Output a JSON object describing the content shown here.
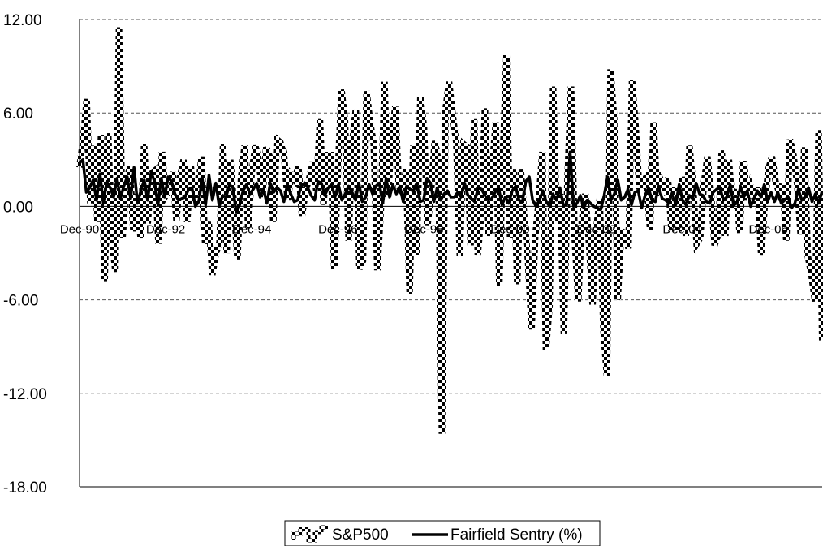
{
  "chart_data": {
    "type": "line",
    "title": "",
    "xlabel": "",
    "ylabel": "",
    "ylim": [
      -18,
      12
    ],
    "yticks": [
      "12.00",
      "6.00",
      "0.00",
      "-6.00",
      "-12.00",
      "-18.00"
    ],
    "xticks": [
      "Dec-90",
      "Dec-92",
      "Dec-94",
      "Dec-96",
      "Dec-98",
      "Dec-00",
      "Dec-02",
      "Dec-04",
      "Dec-06"
    ],
    "grid": "horizontal-dashed",
    "legend_position": "bottom",
    "x_start": "Dec-90",
    "x_end": "Dec-08",
    "series": [
      {
        "name": "S&P500",
        "style": "checkered",
        "color": "#000000",
        "values": [
          2.5,
          4.3,
          6.9,
          0.2,
          3.9,
          -1.0,
          4.6,
          -4.8,
          4.7,
          -2.0,
          -4.2,
          11.5,
          -2.0,
          1.3,
          2.6,
          -1.6,
          0.8,
          -2.0,
          4.0,
          -1.1,
          2.1,
          2.3,
          -2.4,
          3.5,
          0.7,
          1.1,
          2.2,
          -0.9,
          1.9,
          3.0,
          -1.0,
          2.6,
          0.3,
          1.1,
          3.2,
          -2.4,
          -1.0,
          -4.4,
          -3.0,
          -2.3,
          4.0,
          -3.0,
          3.0,
          0.2,
          -3.4,
          1.8,
          3.9,
          -1.4,
          2.2,
          3.9,
          2.9,
          0.6,
          3.8,
          3.2,
          -1.0,
          4.3,
          4.1,
          3.3,
          0.4,
          2.0,
          1.7,
          2.6,
          -0.6,
          1.0,
          1.8,
          2.8,
          1.0,
          5.6,
          0.1,
          3.3,
          3.3,
          -4.0,
          2.2,
          7.5,
          5.5,
          -2.2,
          4.1,
          6.2,
          -4.0,
          -3.5,
          7.4,
          5.4,
          4.0,
          -4.1,
          -0.1,
          8.0,
          0.6,
          4.5,
          6.4,
          1.3,
          0.9,
          2.4,
          -5.6,
          3.9,
          -3.1,
          7.0,
          5.1,
          -1.2,
          1.0,
          4.2,
          3.0,
          -14.6,
          6.2,
          8.0,
          5.9,
          4.1,
          -3.2,
          4.0,
          3.8,
          -2.5,
          5.6,
          -3.1,
          -0.5,
          6.3,
          -1.9,
          2.5,
          5.4,
          -5.1,
          3.3,
          9.7,
          -2.0,
          2.4,
          -5.0,
          2.4,
          -0.8,
          -3.5,
          -7.9,
          -2.0,
          0.4,
          3.5,
          -9.2,
          -6.4,
          7.7,
          -0.9,
          0.8,
          -8.2,
          1.8,
          7.7,
          -2.0,
          -6.1,
          -0.9,
          0.8,
          -2.4,
          -6.3,
          -1.5,
          0.5,
          -7.9,
          -10.9,
          8.8,
          5.7,
          -6.0,
          -1.6,
          -1.7,
          -2.7,
          8.1,
          5.1,
          1.1,
          1.6,
          1.9,
          -1.5,
          5.4,
          0.7,
          1.7,
          1.2,
          1.8,
          -1.6,
          1.2,
          -1.6,
          1.9,
          -1.9,
          3.9,
          1.3,
          -2.4,
          -2.0,
          1.4,
          3.2,
          0.9,
          -2.5,
          -1.8,
          3.6,
          -1.9,
          3.0,
          -0.1,
          1.1,
          -1.7,
          2.9,
          0.4,
          1.3,
          0.6,
          1.2,
          -3.1,
          0.1,
          2.4,
          3.2,
          1.6,
          0.9,
          1.4,
          -2.2,
          4.3,
          3.3,
          1.5,
          -1.8,
          3.8,
          -3.2,
          -4.4,
          -6.1,
          4.9,
          -8.6
        ]
      },
      {
        "name": "Fairfield Sentry (%)",
        "style": "solid",
        "color": "#000000",
        "values": [
          2.8,
          3.0,
          0.9,
          1.2,
          1.7,
          0.4,
          2.1,
          0.2,
          1.6,
          1.2,
          0.6,
          1.8,
          0.5,
          1.3,
          1.9,
          0.5,
          2.5,
          0.2,
          1.0,
          1.7,
          0.4,
          2.2,
          1.6,
          0.1,
          1.8,
          0.6,
          1.9,
          1.6,
          0.8,
          0.4,
          0.5,
          0.6,
          1.1,
          1.2,
          0.0,
          0.3,
          1.8,
          0.1,
          2.0,
          0.4,
          1.5,
          0.0,
          0.7,
          0.6,
          1.4,
          1.2,
          -0.4,
          0.1,
          1.0,
          1.4,
          0.8,
          1.1,
          1.5,
          0.6,
          1.1,
          0.2,
          1.5,
          0.9,
          1.2,
          1.0,
          0.3,
          1.4,
          0.8,
          0.3,
          0.4,
          1.3,
          1.5,
          1.2,
          0.7,
          0.4,
          1.6,
          1.5,
          0.7,
          1.2,
          1.4,
          0.6,
          1.4,
          0.4,
          0.8,
          1.3,
          0.9,
          0.4,
          1.5,
          0.3,
          0.6,
          1.4,
          0.8,
          1.3,
          1.5,
          0.2,
          1.8,
          0.6,
          1.4,
          0.8,
          1.3,
          0.3,
          1.3,
          1.1,
          1.0,
          1.5,
          0.3,
          0.4,
          1.8,
          1.5,
          0.3,
          1.2,
          0.4,
          0.8,
          1.0,
          0.6,
          0.6,
          0.9,
          0.6,
          1.5,
          0.7,
          0.5,
          0.3,
          1.2,
          1.1,
          0.7,
          0.4,
          0.5,
          0.9,
          1.2,
          0.1,
          0.6,
          0.2,
          1.0,
          1.3,
          0.4,
          0.3,
          1.6,
          1.9,
          0.4,
          0.0,
          0.4,
          1.0,
          0.3,
          0.0,
          0.8,
          0.4,
          1.2,
          0.1,
          0.1,
          3.5,
          0.0,
          0.2,
          0.7,
          -0.1,
          0.4,
          0.2,
          0.0,
          -0.1,
          -0.2,
          0.7,
          1.9,
          0.4,
          0.8,
          1.7,
          0.4,
          0.6,
          1.1,
          0.1,
          0.9,
          1.0,
          -0.1,
          0.7,
          1.2,
          0.4,
          0.3,
          1.3,
          0.5,
          0.4,
          0.2,
          0.9,
          0.1,
          1.4,
          0.4,
          0.1,
          0.7,
          0.5,
          1.5,
          0.8,
          0.7,
          0.3,
          0.2,
          0.9,
          1.1,
          1.2,
          0.4,
          0.6,
          1.4,
          0.1,
          0.2,
          1.3,
          0.6,
          1.0,
          0.0,
          0.5,
          1.0,
          0.6,
          1.4,
          0.3,
          0.9,
          0.3,
          0.9,
          0.2,
          0.4,
          0.6,
          -0.1,
          0.2,
          1.1,
          0.4,
          0.6,
          1.2,
          0.3,
          0.8,
          0.2,
          1.0
        ]
      }
    ]
  }
}
